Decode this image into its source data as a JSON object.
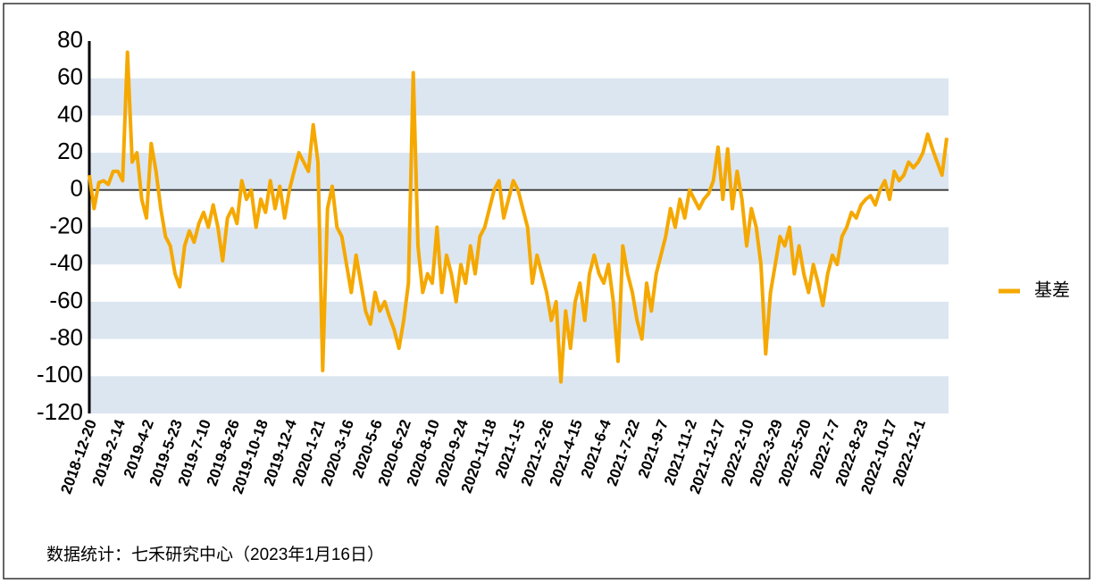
{
  "chart_data": {
    "type": "line",
    "categories": [
      "2018-12-20",
      null,
      null,
      null,
      null,
      null,
      "2019-2-14",
      null,
      null,
      null,
      null,
      null,
      "2019-4-2",
      null,
      null,
      null,
      null,
      null,
      "2019-5-23",
      null,
      null,
      null,
      null,
      null,
      "2019-7-10",
      null,
      null,
      null,
      null,
      null,
      "2019-8-26",
      null,
      null,
      null,
      null,
      null,
      "2019-10-18",
      null,
      null,
      null,
      null,
      null,
      "2019-12-4",
      null,
      null,
      null,
      null,
      null,
      "2020-1-21",
      null,
      null,
      null,
      null,
      null,
      "2020-3-16",
      null,
      null,
      null,
      null,
      null,
      "2020-5-6",
      null,
      null,
      null,
      null,
      null,
      "2020-6-22",
      null,
      null,
      null,
      null,
      null,
      "2020-8-10",
      null,
      null,
      null,
      null,
      null,
      "2020-9-24",
      null,
      null,
      null,
      null,
      null,
      "2020-11-18",
      null,
      null,
      null,
      null,
      null,
      "2021-1-5",
      null,
      null,
      null,
      null,
      null,
      "2021-2-26",
      null,
      null,
      null,
      null,
      null,
      "2021-4-15",
      null,
      null,
      null,
      null,
      null,
      "2021-6-4",
      null,
      null,
      null,
      null,
      null,
      "2021-7-22",
      null,
      null,
      null,
      null,
      null,
      "2021-9-7",
      null,
      null,
      null,
      null,
      null,
      "2021-11-2",
      null,
      null,
      null,
      null,
      null,
      "2021-12-17",
      null,
      null,
      null,
      null,
      null,
      "2022-2-10",
      null,
      null,
      null,
      null,
      null,
      "2022-3-29",
      null,
      null,
      null,
      null,
      null,
      "2022-5-20",
      null,
      null,
      null,
      null,
      null,
      "2022-7-7",
      null,
      null,
      null,
      null,
      null,
      "2022-8-23",
      null,
      null,
      null,
      null,
      null,
      "2022-10-17",
      null,
      null,
      null,
      null,
      null,
      "2022-12-1",
      null,
      null,
      null,
      null,
      null,
      null
    ],
    "series": [
      {
        "name": "基差",
        "color": "#f5a800",
        "values": [
          8,
          -10,
          4,
          5,
          3,
          10,
          10,
          5,
          74,
          15,
          20,
          -5,
          -15,
          25,
          10,
          -10,
          -25,
          -30,
          -45,
          -52,
          -30,
          -22,
          -28,
          -18,
          -12,
          -20,
          -8,
          -20,
          -38,
          -15,
          -10,
          -18,
          5,
          -5,
          0,
          -20,
          -5,
          -12,
          5,
          -10,
          2,
          -15,
          0,
          10,
          20,
          15,
          10,
          35,
          15,
          -97,
          -10,
          2,
          -20,
          -25,
          -40,
          -55,
          -35,
          -50,
          -65,
          -72,
          -55,
          -65,
          -60,
          -68,
          -75,
          -85,
          -70,
          -50,
          63,
          -30,
          -55,
          -45,
          -50,
          -20,
          -55,
          -35,
          -45,
          -60,
          -40,
          -50,
          -30,
          -45,
          -25,
          -20,
          -10,
          0,
          5,
          -15,
          -5,
          5,
          0,
          -10,
          -20,
          -50,
          -35,
          -45,
          -55,
          -70,
          -60,
          -103,
          -65,
          -85,
          -60,
          -50,
          -70,
          -45,
          -35,
          -45,
          -50,
          -40,
          -60,
          -92,
          -30,
          -45,
          -55,
          -70,
          -80,
          -50,
          -65,
          -45,
          -35,
          -25,
          -10,
          -20,
          -5,
          -15,
          0,
          -5,
          -10,
          -5,
          -2,
          5,
          23,
          -5,
          22,
          -10,
          10,
          -5,
          -30,
          -10,
          -20,
          -40,
          -88,
          -55,
          -40,
          -25,
          -30,
          -20,
          -45,
          -30,
          -45,
          -55,
          -40,
          -50,
          -62,
          -45,
          -35,
          -40,
          -25,
          -20,
          -12,
          -15,
          -8,
          -5,
          -3,
          -8,
          0,
          5,
          -5,
          10,
          5,
          8,
          15,
          12,
          15,
          20,
          30,
          22,
          15,
          8,
          28
        ]
      }
    ],
    "ylim": [
      -120,
      80
    ],
    "yticks": [
      -120,
      -100,
      -80,
      -60,
      -40,
      -20,
      0,
      20,
      40,
      60,
      80
    ],
    "bands": true,
    "legend": "right",
    "source": "数据统计：七禾研究中心（2023年1月16日）"
  }
}
